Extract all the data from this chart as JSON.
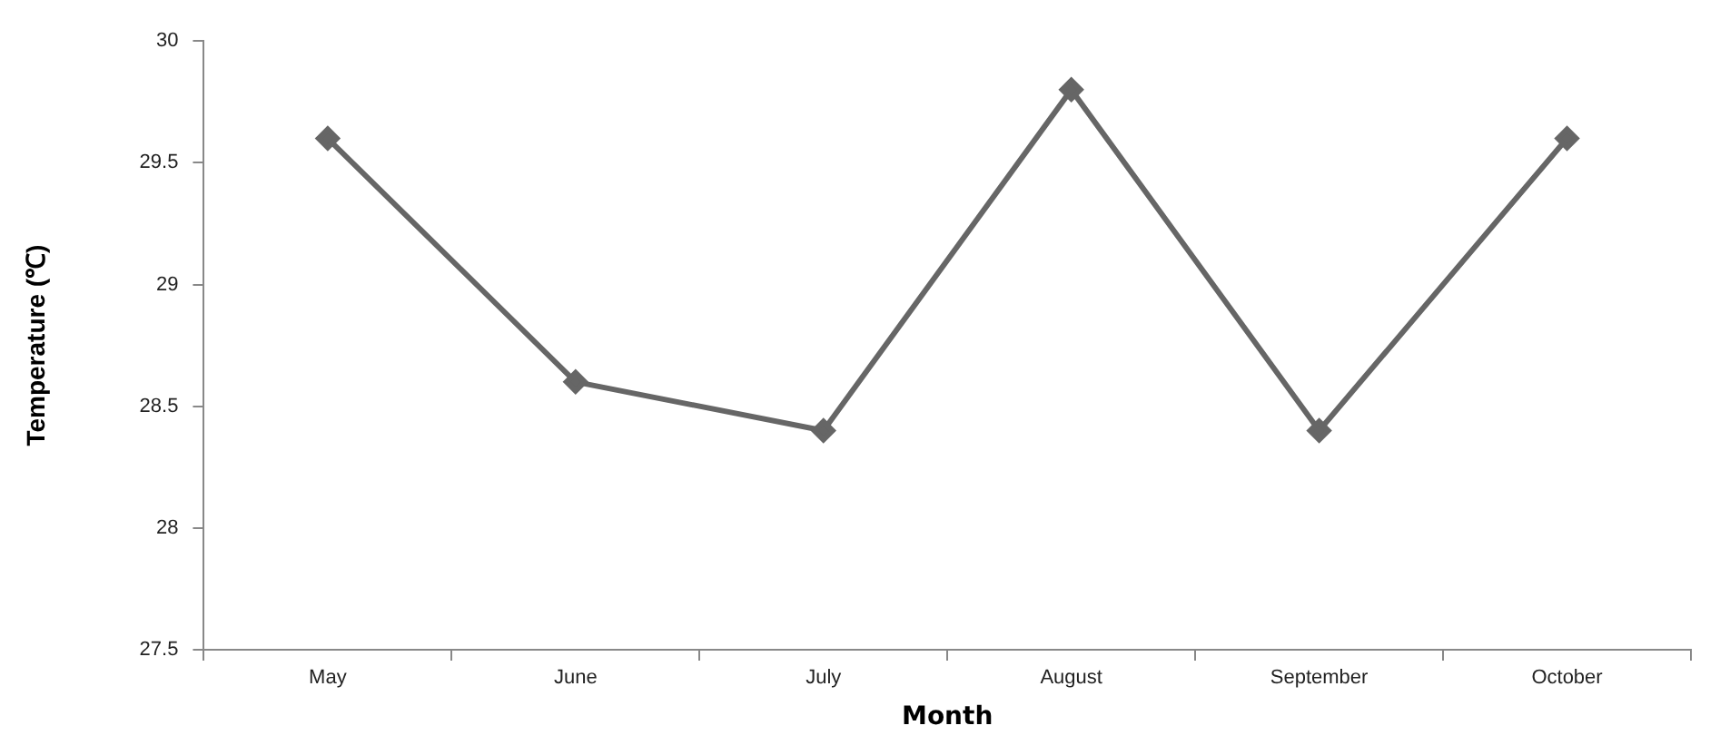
{
  "chart_data": {
    "type": "line",
    "xlabel": "Month",
    "ylabel": "Temperature (℃)",
    "categories": [
      "May",
      "June",
      "July",
      "August",
      "September",
      "October"
    ],
    "series": [
      {
        "color": "#666666",
        "values": [
          29.6,
          28.6,
          28.4,
          29.8,
          28.4,
          29.6
        ]
      }
    ],
    "ylim": [
      27.5,
      30
    ],
    "yticks": [
      27.5,
      28,
      28.5,
      29,
      29.5,
      30
    ],
    "marker": "diamond",
    "line_style": "solid",
    "legend": false
  }
}
